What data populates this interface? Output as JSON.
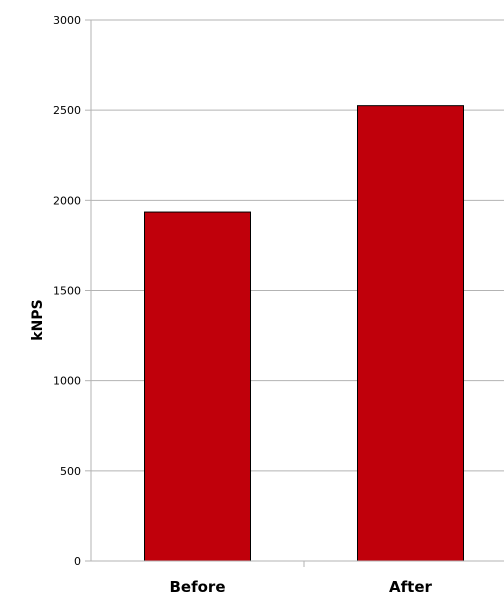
{
  "chart_data": {
    "type": "bar",
    "categories": [
      "Before",
      "After"
    ],
    "values": [
      1935,
      2525
    ],
    "ylabel": "kNPS",
    "xlabel": "",
    "ylim": [
      0,
      3000
    ],
    "yticks": [
      "0",
      "500",
      "1000",
      "1500",
      "2000",
      "2500",
      "3000"
    ],
    "grid": true,
    "legend": "none",
    "colors": {
      "bar": "#c0000b",
      "bar_edge": "#000000",
      "grid": "#b3b3b3",
      "axis": "#b3b3b3"
    }
  }
}
